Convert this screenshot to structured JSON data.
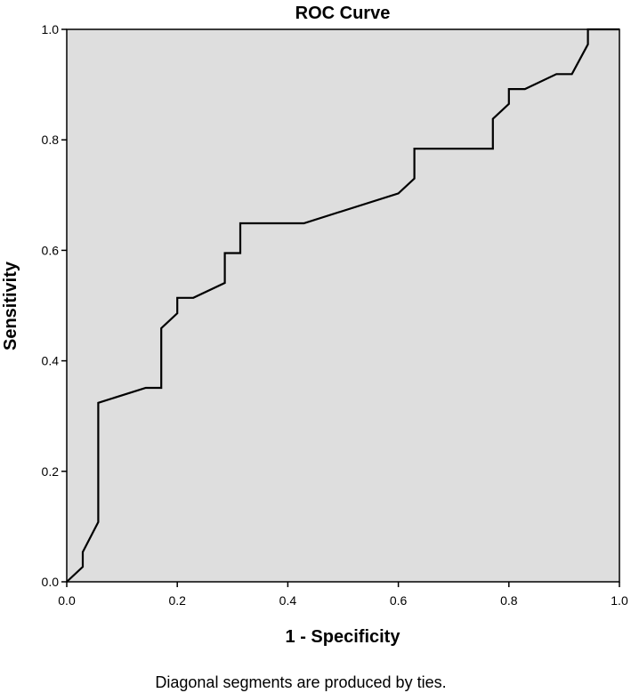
{
  "chart_data": {
    "type": "line",
    "title": "ROC Curve",
    "xlabel": "1 - Specificity",
    "ylabel": "Sensitivity",
    "xlim": [
      0,
      1
    ],
    "ylim": [
      0,
      1
    ],
    "x_ticks": [
      "0.0",
      "0.2",
      "0.4",
      "0.6",
      "0.8",
      "1.0"
    ],
    "y_ticks": [
      "0.0",
      "0.2",
      "0.4",
      "0.6",
      "0.8",
      "1.0"
    ],
    "grid": false,
    "legend": "none",
    "plot_background": "#dedede",
    "line_color": "#000000",
    "footnote": "Diagonal segments are produced by ties.",
    "series": [
      {
        "x": [
          0.0,
          0.029,
          0.029,
          0.057,
          0.057,
          0.143,
          0.171,
          0.171,
          0.2,
          0.2,
          0.229,
          0.286,
          0.286,
          0.314,
          0.314,
          0.429,
          0.6,
          0.629,
          0.629,
          0.771,
          0.771,
          0.8,
          0.8,
          0.829,
          0.886,
          0.914,
          0.943,
          0.943,
          1.0
        ],
        "y": [
          0.0,
          0.027,
          0.054,
          0.108,
          0.324,
          0.351,
          0.351,
          0.459,
          0.486,
          0.514,
          0.514,
          0.541,
          0.595,
          0.595,
          0.649,
          0.649,
          0.703,
          0.73,
          0.784,
          0.784,
          0.838,
          0.865,
          0.892,
          0.892,
          0.919,
          0.919,
          0.973,
          1.0,
          1.0
        ]
      }
    ]
  }
}
